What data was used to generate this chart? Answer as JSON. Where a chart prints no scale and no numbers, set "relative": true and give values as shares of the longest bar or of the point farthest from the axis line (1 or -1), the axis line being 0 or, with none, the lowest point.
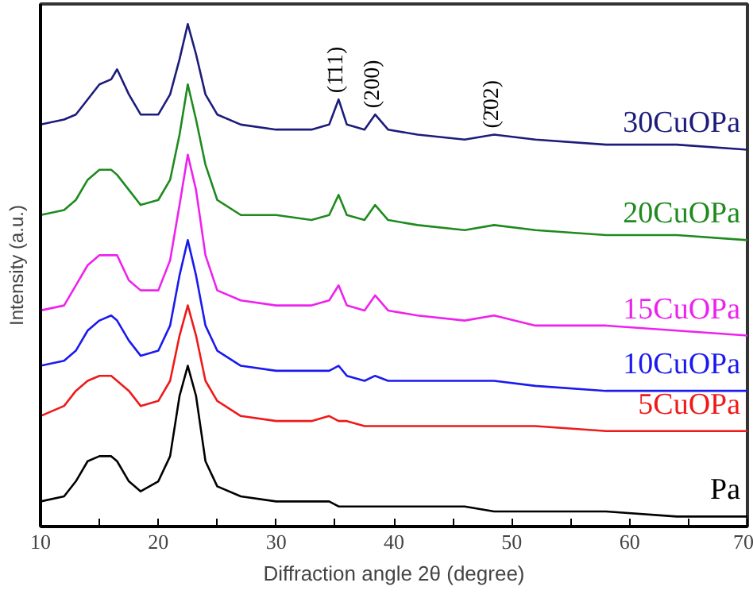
{
  "chart_data": {
    "type": "line",
    "relative": true,
    "xlabel": "Diffraction angle 2θ (degree)",
    "ylabel": "Intensity (a.u.)",
    "x": [
      10,
      12,
      13,
      14,
      15,
      16,
      16.5,
      17.5,
      18.5,
      20,
      21,
      21.8,
      22.5,
      23.2,
      24,
      25,
      27,
      30,
      33,
      34.5,
      35.3,
      36,
      37.5,
      38.4,
      39.5,
      42,
      46,
      48.5,
      52,
      58,
      64,
      70
    ],
    "xlim": [
      10,
      70
    ],
    "xticks": [
      10,
      {
        "value": 15,
        "label": null
      },
      20,
      {
        "value": 25,
        "label": null
      },
      30,
      {
        "value": 35,
        "label": null
      },
      40,
      {
        "value": 45,
        "label": null
      },
      50,
      {
        "value": 55,
        "label": null
      },
      60,
      {
        "value": 65,
        "label": null
      },
      70
    ],
    "grid": false,
    "series": [
      {
        "name": "30CuOPa",
        "color": "#1c1c7c",
        "values": [
          0.8,
          0.81,
          0.82,
          0.85,
          0.88,
          0.89,
          0.91,
          0.86,
          0.82,
          0.82,
          0.86,
          0.93,
          1.0,
          0.94,
          0.86,
          0.82,
          0.8,
          0.79,
          0.79,
          0.8,
          0.85,
          0.8,
          0.79,
          0.82,
          0.79,
          0.78,
          0.77,
          0.78,
          0.77,
          0.76,
          0.76,
          0.75
        ]
      },
      {
        "name": "20CuOPa",
        "color": "#1f8a1f",
        "values": [
          0.62,
          0.63,
          0.65,
          0.69,
          0.71,
          0.71,
          0.7,
          0.67,
          0.64,
          0.65,
          0.69,
          0.78,
          0.88,
          0.81,
          0.72,
          0.65,
          0.62,
          0.62,
          0.61,
          0.62,
          0.66,
          0.62,
          0.61,
          0.64,
          0.61,
          0.6,
          0.59,
          0.6,
          0.59,
          0.58,
          0.58,
          0.57
        ]
      },
      {
        "name": "15CuOPa",
        "color": "#ee22ee",
        "values": [
          0.43,
          0.44,
          0.48,
          0.52,
          0.54,
          0.54,
          0.54,
          0.49,
          0.47,
          0.47,
          0.53,
          0.64,
          0.74,
          0.67,
          0.54,
          0.47,
          0.45,
          0.44,
          0.44,
          0.45,
          0.48,
          0.44,
          0.43,
          0.46,
          0.43,
          0.42,
          0.41,
          0.42,
          0.4,
          0.4,
          0.39,
          0.38
        ]
      },
      {
        "name": "10CuOPa",
        "color": "#1a1aee",
        "values": [
          0.32,
          0.33,
          0.35,
          0.39,
          0.41,
          0.42,
          0.41,
          0.37,
          0.34,
          0.35,
          0.4,
          0.5,
          0.57,
          0.5,
          0.4,
          0.35,
          0.32,
          0.31,
          0.31,
          0.31,
          0.32,
          0.3,
          0.29,
          0.3,
          0.29,
          0.29,
          0.29,
          0.29,
          0.28,
          0.27,
          0.27,
          0.27
        ]
      },
      {
        "name": "5CuOPa",
        "color": "#ee1a1a",
        "values": [
          0.22,
          0.24,
          0.27,
          0.29,
          0.3,
          0.3,
          0.29,
          0.27,
          0.24,
          0.25,
          0.29,
          0.38,
          0.44,
          0.38,
          0.29,
          0.25,
          0.22,
          0.21,
          0.21,
          0.22,
          0.21,
          0.21,
          0.2,
          0.2,
          0.2,
          0.2,
          0.2,
          0.2,
          0.2,
          0.19,
          0.19,
          0.19
        ]
      },
      {
        "name": "Pa",
        "color": "#000000",
        "values": [
          0.05,
          0.06,
          0.09,
          0.13,
          0.14,
          0.14,
          0.13,
          0.09,
          0.07,
          0.09,
          0.14,
          0.26,
          0.32,
          0.26,
          0.13,
          0.08,
          0.06,
          0.05,
          0.05,
          0.05,
          0.04,
          0.04,
          0.04,
          0.04,
          0.04,
          0.04,
          0.04,
          0.03,
          0.03,
          0.03,
          0.02,
          0.02
        ]
      }
    ],
    "annotations": [
      {
        "text": "(1̄11)",
        "x": 35.3,
        "y": 0.85
      },
      {
        "text": "(200)",
        "x": 38.4,
        "y": 0.82
      },
      {
        "text": "(2̄02)",
        "x": 48.5,
        "y": 0.78
      }
    ]
  }
}
